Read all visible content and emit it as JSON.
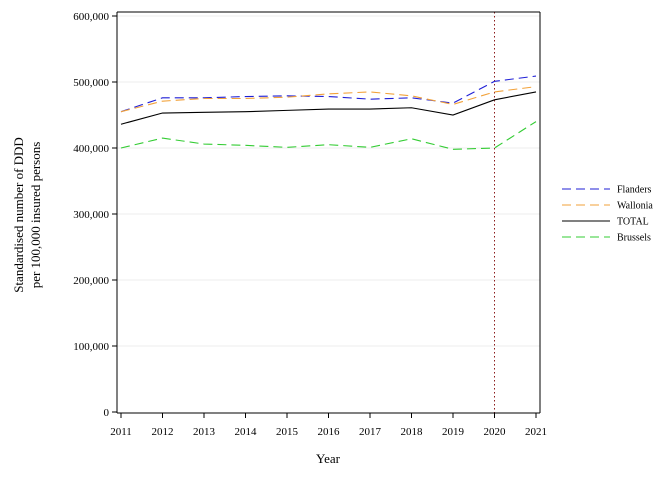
{
  "chart_data": {
    "type": "line",
    "title": "",
    "xlabel": "Year",
    "ylabel_lines": [
      "Standardised number of DDD",
      "per 100,000 insured persons"
    ],
    "x": [
      2011,
      2012,
      2013,
      2014,
      2015,
      2016,
      2017,
      2018,
      2019,
      2020,
      2021
    ],
    "x_tick_labels": [
      "2011",
      "2012",
      "2013",
      "2014",
      "2015",
      "2016",
      "2017",
      "2018",
      "2019",
      "2020",
      "2021"
    ],
    "xlim": [
      2011,
      2021
    ],
    "ylim": [
      0,
      600000
    ],
    "y_ticks": [
      0,
      100000,
      200000,
      300000,
      400000,
      500000,
      600000
    ],
    "y_tick_labels": [
      "0",
      "100,000",
      "200,000",
      "300,000",
      "400,000",
      "500,000",
      "600,000"
    ],
    "grid": "horizontal",
    "legend_position": "right",
    "reference_line": {
      "x": 2020,
      "style": "dotted",
      "color": "#8b1a1a"
    },
    "series": [
      {
        "name": "Flanders",
        "color": "#1f1fd6",
        "dash": "dashed",
        "values": [
          455000,
          476000,
          476000,
          478000,
          479000,
          478000,
          474000,
          476000,
          468000,
          501000,
          509000
        ]
      },
      {
        "name": "Wallonia",
        "color": "#f2a23a",
        "dash": "dashed",
        "values": [
          455000,
          471000,
          475000,
          475000,
          477000,
          482000,
          485000,
          479000,
          466000,
          485000,
          493000
        ]
      },
      {
        "name": "TOTAL",
        "color": "#000000",
        "dash": "solid",
        "values": [
          436000,
          453000,
          454000,
          455000,
          457000,
          459000,
          459000,
          461000,
          450000,
          473000,
          485000
        ]
      },
      {
        "name": "Brussels",
        "color": "#33cc33",
        "dash": "dashed",
        "values": [
          400000,
          415000,
          406000,
          404000,
          401000,
          405000,
          401000,
          414000,
          398000,
          400000,
          440000
        ]
      }
    ]
  }
}
